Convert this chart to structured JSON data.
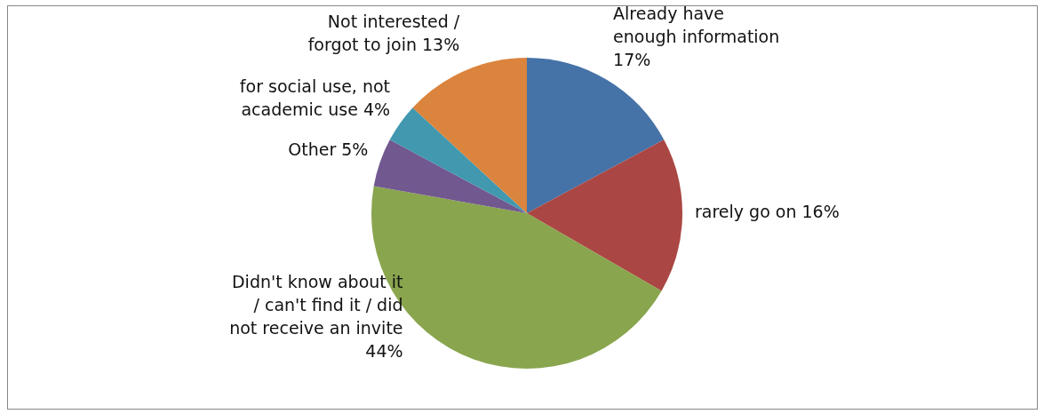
{
  "chart_data": {
    "type": "pie",
    "categories": [
      "Already have enough information",
      "rarely go on",
      "Didn't know about it / can't find it / did not receive an invite",
      "Other",
      "for social use, not academic use",
      "Not interested / forgot to join"
    ],
    "values": [
      17,
      16,
      44,
      5,
      4,
      13
    ],
    "value_labels": [
      "17%",
      "16%",
      "44%",
      "5%",
      "4%",
      "13%"
    ],
    "colors": [
      "#4572a7",
      "#aa4643",
      "#89a54e",
      "#71588f",
      "#4198af",
      "#db843d"
    ],
    "legend": false
  }
}
